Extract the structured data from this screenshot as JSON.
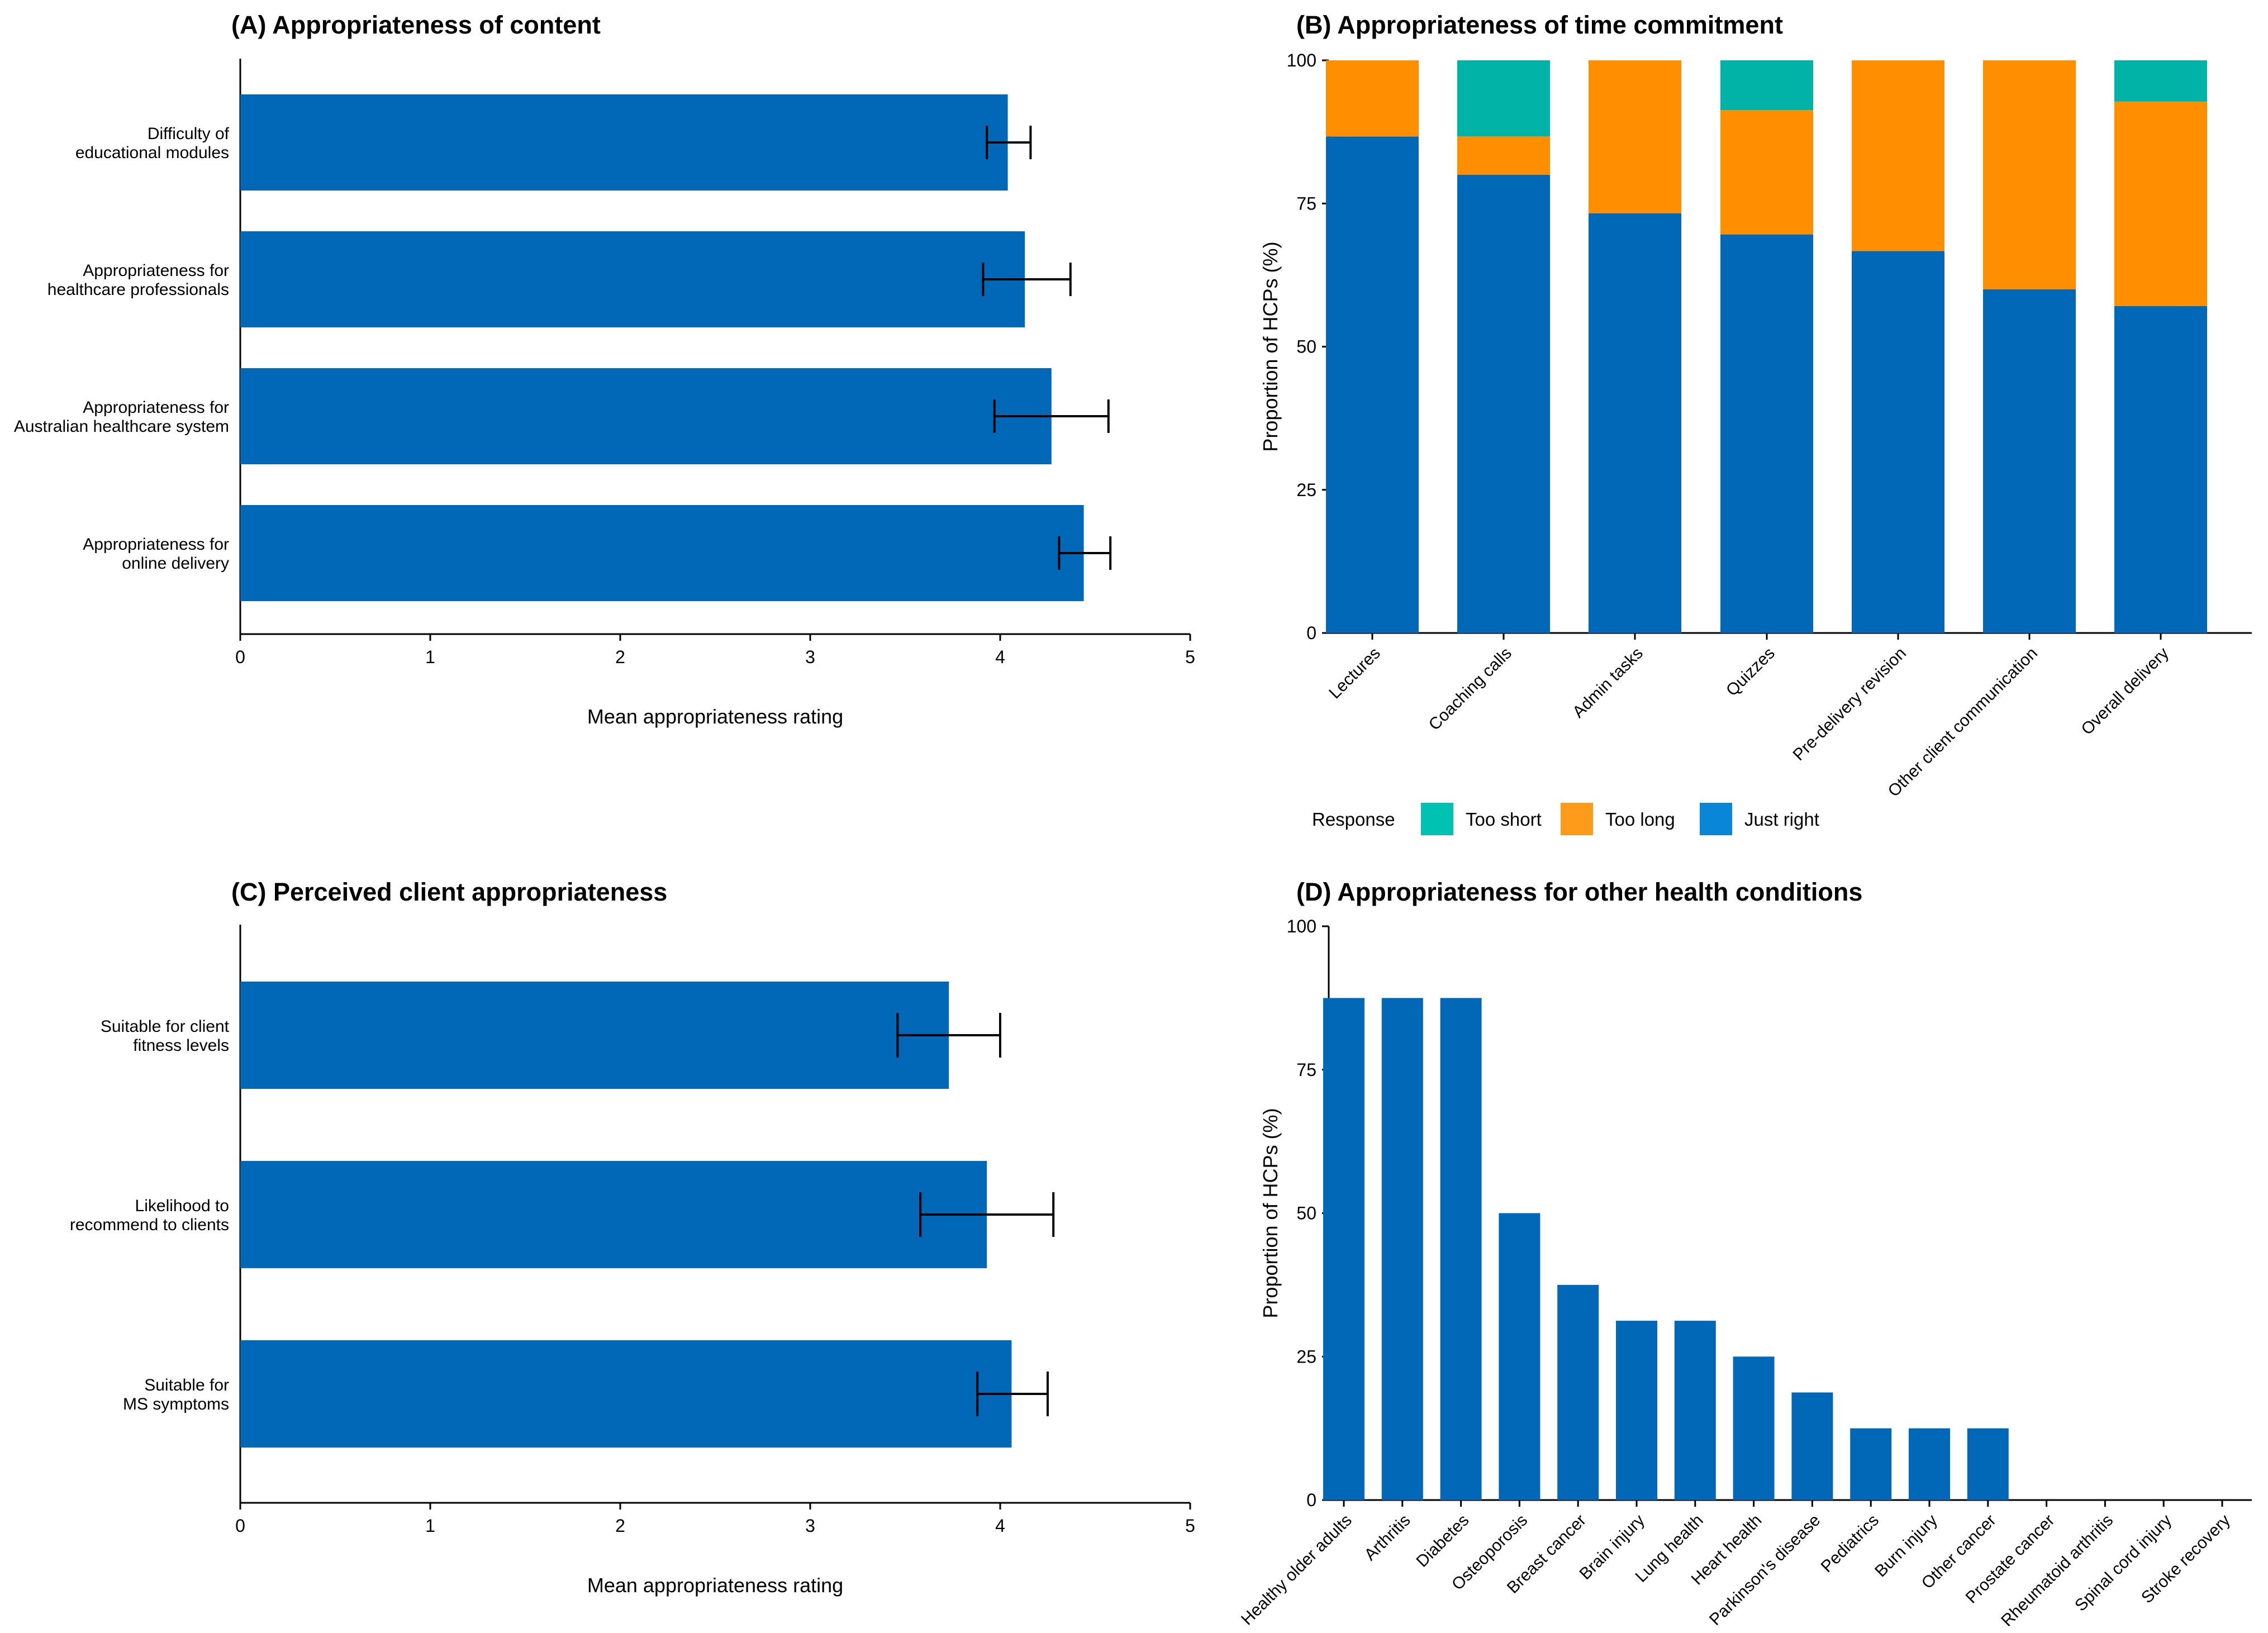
{
  "chart_data": [
    {
      "id": "A",
      "type": "bar",
      "orientation": "horizontal",
      "title": "(A) Appropriateness of content",
      "xlabel": "Mean appropriateness rating",
      "xlim": [
        0,
        5
      ],
      "xticks": [
        "0",
        "1",
        "2",
        "3",
        "4",
        "5"
      ],
      "categories": [
        [
          "Difficulty of",
          "educational modules"
        ],
        [
          "Appropriateness for",
          "healthcare professionals"
        ],
        [
          "Appropriateness for",
          "Australian healthcare system"
        ],
        [
          "Appropriateness for",
          "online delivery"
        ]
      ],
      "values": [
        4.04,
        4.13,
        4.27,
        4.44
      ],
      "error_low": [
        3.93,
        3.91,
        3.97,
        4.31
      ],
      "error_high": [
        4.16,
        4.37,
        4.57,
        4.58
      ],
      "color": "#0068b7"
    },
    {
      "id": "B",
      "type": "bar",
      "stacked": true,
      "title": "(B) Appropriateness of time commitment",
      "ylabel": "Proportion of HCPs (%)",
      "ylim": [
        0,
        100
      ],
      "yticks": [
        "0",
        "25",
        "50",
        "75",
        "100"
      ],
      "categories": [
        "Lectures",
        "Coaching calls",
        "Admin tasks",
        "Quizzes",
        "Pre-delivery revision",
        "Other client communication",
        "Overall delivery"
      ],
      "series": [
        {
          "name": "Just right",
          "color": "#0068b7",
          "values": [
            86.7,
            80.0,
            73.3,
            69.6,
            66.7,
            60.0,
            57.1
          ]
        },
        {
          "name": "Too long",
          "color": "#ff8f00",
          "values": [
            13.3,
            6.7,
            26.7,
            21.7,
            33.3,
            40.0,
            35.7
          ]
        },
        {
          "name": "Too short",
          "color": "#00b3a6",
          "values": [
            0,
            13.3,
            0,
            8.7,
            0,
            0,
            7.2
          ]
        }
      ],
      "legend": {
        "title": "Response",
        "position": "bottom",
        "items": [
          {
            "label": "Too short",
            "color": "#00c2b3"
          },
          {
            "label": "Too long",
            "color": "#ff9b1a"
          },
          {
            "label": "Just right",
            "color": "#0a86d6"
          }
        ]
      }
    },
    {
      "id": "C",
      "type": "bar",
      "orientation": "horizontal",
      "title": "(C) Perceived client appropriateness",
      "xlabel": "Mean appropriateness rating",
      "xlim": [
        0,
        5
      ],
      "xticks": [
        "0",
        "1",
        "2",
        "3",
        "4",
        "5"
      ],
      "categories": [
        [
          "Suitable for client",
          "fitness levels"
        ],
        [
          "Likelihood to",
          "recommend to clients"
        ],
        [
          "Suitable for",
          "MS symptoms"
        ]
      ],
      "values": [
        3.73,
        3.93,
        4.06
      ],
      "error_low": [
        3.46,
        3.58,
        3.88
      ],
      "error_high": [
        4.0,
        4.28,
        4.25
      ],
      "color": "#0068b7"
    },
    {
      "id": "D",
      "type": "bar",
      "title": "(D) Appropriateness for other health conditions",
      "ylabel": "Proportion of HCPs (%)",
      "ylim": [
        0,
        100
      ],
      "yticks": [
        "0",
        "25",
        "50",
        "75",
        "100"
      ],
      "categories": [
        "Healthy older adults",
        "Arthritis",
        "Diabetes",
        "Osteoporosis",
        "Breast cancer",
        "Brain injury",
        "Lung health",
        "Heart health",
        "Parkinson's disease",
        "Pediatrics",
        "Burn injury",
        "Other cancer",
        "Prostate cancer",
        "Rheumatoid arthritis",
        "Spinal cord injury",
        "Stroke recovery"
      ],
      "values": [
        87.5,
        87.5,
        87.5,
        50.0,
        37.5,
        31.25,
        31.25,
        25.0,
        18.75,
        12.5,
        12.5,
        12.5,
        0,
        0,
        0,
        0
      ],
      "color": "#0068b7"
    }
  ]
}
